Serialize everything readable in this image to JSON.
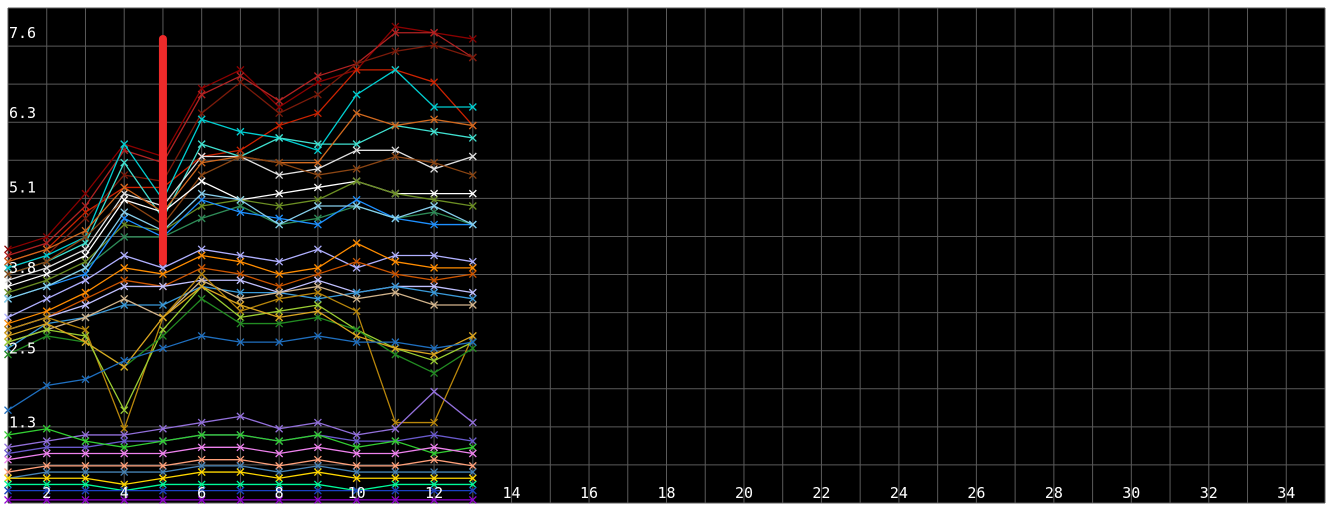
{
  "chart_data": {
    "type": "line",
    "title": "",
    "xlabel": "",
    "ylabel": "",
    "grid": true,
    "background_color": "#000000",
    "grid_color": "#5a5a5a",
    "text_color": "#ffffff",
    "marker": "x",
    "xlim": [
      1,
      35
    ],
    "ylim": [
      0,
      8.0
    ],
    "x_ticks": [
      2,
      4,
      6,
      8,
      10,
      12,
      14,
      16,
      18,
      20,
      22,
      24,
      26,
      28,
      30,
      32,
      34
    ],
    "y_ticks": [
      1.3,
      2.5,
      3.8,
      5.1,
      6.3,
      7.6
    ],
    "x": [
      1,
      2,
      3,
      4,
      5,
      6,
      7,
      8,
      9,
      10,
      11,
      12,
      13
    ],
    "series": [
      {
        "color": "#8b0000",
        "values": [
          4.1,
          4.3,
          5.0,
          5.8,
          5.6,
          6.7,
          7.0,
          6.4,
          6.8,
          7.0,
          7.7,
          7.6,
          7.5
        ]
      },
      {
        "color": "#b22222",
        "values": [
          4.0,
          4.2,
          4.8,
          5.7,
          5.5,
          6.6,
          6.9,
          6.5,
          6.9,
          7.1,
          7.6,
          7.6,
          7.2
        ]
      },
      {
        "color": "#cc2200",
        "values": [
          3.9,
          4.1,
          4.7,
          5.1,
          5.1,
          5.6,
          5.7,
          6.1,
          6.3,
          7.0,
          7.0,
          6.8,
          6.1
        ]
      },
      {
        "color": "#7a1a0a",
        "values": [
          3.8,
          4.0,
          4.6,
          5.3,
          5.2,
          6.3,
          6.8,
          6.3,
          6.6,
          7.1,
          7.3,
          7.4,
          7.2
        ]
      },
      {
        "color": "#00ced1",
        "values": [
          3.8,
          4.0,
          4.3,
          5.8,
          4.9,
          6.2,
          6.0,
          5.9,
          5.7,
          6.6,
          7.0,
          6.4,
          6.4
        ]
      },
      {
        "color": "#40e0d0",
        "values": [
          3.7,
          3.9,
          4.2,
          5.5,
          4.6,
          5.8,
          5.6,
          5.9,
          5.8,
          5.8,
          6.1,
          6.0,
          5.9
        ]
      },
      {
        "color": "#e0e0e0",
        "values": [
          3.6,
          3.8,
          4.1,
          5.0,
          4.8,
          5.6,
          5.6,
          5.3,
          5.4,
          5.7,
          5.7,
          5.4,
          5.6
        ]
      },
      {
        "color": "#d2691e",
        "values": [
          3.9,
          4.1,
          4.4,
          5.1,
          4.7,
          5.5,
          5.6,
          5.5,
          5.5,
          6.3,
          6.1,
          6.2,
          6.1
        ]
      },
      {
        "color": "#8b4513",
        "values": [
          3.7,
          3.9,
          4.3,
          4.9,
          4.5,
          5.3,
          5.6,
          5.5,
          5.3,
          5.4,
          5.6,
          5.5,
          5.3
        ]
      },
      {
        "color": "#ffffff",
        "values": [
          3.5,
          3.7,
          4.0,
          4.9,
          4.7,
          5.2,
          4.9,
          5.0,
          5.1,
          5.2,
          5.0,
          5.0,
          5.0
        ]
      },
      {
        "color": "#6b8e23",
        "values": [
          3.4,
          3.6,
          3.9,
          4.5,
          4.4,
          4.8,
          4.9,
          4.8,
          4.9,
          5.2,
          5.0,
          4.9,
          4.8
        ]
      },
      {
        "color": "#2e8b57",
        "values": [
          3.3,
          3.5,
          3.8,
          4.3,
          4.3,
          4.6,
          4.8,
          4.5,
          4.6,
          4.8,
          4.6,
          4.7,
          4.5
        ]
      },
      {
        "color": "#1e90ff",
        "values": [
          3.3,
          3.5,
          3.7,
          4.6,
          4.3,
          4.9,
          4.7,
          4.6,
          4.5,
          4.9,
          4.6,
          4.5,
          4.5
        ]
      },
      {
        "color": "#87ceeb",
        "values": [
          3.3,
          3.5,
          3.8,
          4.7,
          4.4,
          5.0,
          4.9,
          4.5,
          4.8,
          4.8,
          4.6,
          4.8,
          4.5
        ]
      },
      {
        "color": "#b0b0ff",
        "values": [
          3.0,
          3.3,
          3.6,
          4.0,
          3.8,
          4.1,
          4.0,
          3.9,
          4.1,
          3.8,
          4.0,
          4.0,
          3.9
        ]
      },
      {
        "color": "#ff8c00",
        "values": [
          2.9,
          3.1,
          3.4,
          3.8,
          3.7,
          4.0,
          3.9,
          3.7,
          3.8,
          4.2,
          3.9,
          3.8,
          3.8
        ]
      },
      {
        "color": "#cc5500",
        "values": [
          2.8,
          3.0,
          3.3,
          3.6,
          3.5,
          3.8,
          3.7,
          3.5,
          3.7,
          3.9,
          3.7,
          3.6,
          3.7
        ]
      },
      {
        "color": "#c0c0ff",
        "values": [
          2.8,
          3.0,
          3.2,
          3.5,
          3.5,
          3.6,
          3.6,
          3.4,
          3.6,
          3.4,
          3.5,
          3.5,
          3.4
        ]
      },
      {
        "color": "#3a9ad9",
        "values": [
          2.5,
          2.9,
          3.0,
          3.2,
          3.2,
          3.5,
          3.4,
          3.4,
          3.3,
          3.4,
          3.5,
          3.4,
          3.3
        ]
      },
      {
        "color": "#d2b48c",
        "values": [
          2.6,
          2.8,
          3.0,
          3.3,
          3.0,
          3.6,
          3.3,
          3.4,
          3.5,
          3.3,
          3.4,
          3.2,
          3.2
        ]
      },
      {
        "color": "#b8860b",
        "values": [
          2.8,
          3.0,
          2.8,
          1.2,
          3.0,
          3.7,
          3.1,
          3.3,
          3.4,
          3.1,
          1.3,
          1.3,
          2.7
        ]
      },
      {
        "color": "#9acd32",
        "values": [
          2.6,
          2.8,
          2.7,
          1.5,
          2.8,
          3.5,
          3.0,
          3.1,
          3.2,
          2.8,
          2.5,
          2.3,
          2.6
        ]
      },
      {
        "color": "#228b22",
        "values": [
          2.4,
          2.7,
          2.6,
          2.2,
          2.7,
          3.3,
          2.9,
          2.9,
          3.0,
          2.8,
          2.4,
          2.1,
          2.5
        ]
      },
      {
        "color": "#daa520",
        "values": [
          2.7,
          2.9,
          2.6,
          2.2,
          3.0,
          3.5,
          3.2,
          3.0,
          3.1,
          2.7,
          2.5,
          2.4,
          2.7
        ]
      },
      {
        "color": "#1f6fbf",
        "values": [
          1.5,
          1.9,
          2.0,
          2.3,
          2.5,
          2.7,
          2.6,
          2.6,
          2.7,
          2.6,
          2.6,
          2.5,
          2.6
        ]
      },
      {
        "color": "#9370db",
        "values": [
          0.9,
          1.0,
          1.1,
          1.1,
          1.2,
          1.3,
          1.4,
          1.2,
          1.3,
          1.1,
          1.2,
          1.8,
          1.3
        ]
      },
      {
        "color": "#6a5acd",
        "values": [
          0.8,
          0.9,
          0.9,
          1.0,
          1.0,
          1.1,
          1.1,
          1.0,
          1.1,
          1.0,
          1.0,
          1.1,
          1.0
        ]
      },
      {
        "color": "#32cd32",
        "values": [
          1.1,
          1.2,
          1.0,
          0.9,
          1.0,
          1.1,
          1.1,
          1.0,
          1.1,
          0.9,
          1.0,
          0.8,
          0.9
        ]
      },
      {
        "color": "#ee82ee",
        "values": [
          0.7,
          0.8,
          0.8,
          0.8,
          0.8,
          0.9,
          0.9,
          0.8,
          0.9,
          0.8,
          0.8,
          0.9,
          0.8
        ]
      },
      {
        "color": "#ffa07a",
        "values": [
          0.5,
          0.6,
          0.6,
          0.6,
          0.6,
          0.7,
          0.7,
          0.6,
          0.7,
          0.6,
          0.6,
          0.7,
          0.6
        ]
      },
      {
        "color": "#4682b4",
        "values": [
          0.4,
          0.5,
          0.5,
          0.5,
          0.5,
          0.6,
          0.6,
          0.5,
          0.6,
          0.5,
          0.5,
          0.5,
          0.5
        ]
      },
      {
        "color": "#ffd700",
        "values": [
          0.4,
          0.4,
          0.4,
          0.3,
          0.4,
          0.5,
          0.5,
          0.4,
          0.5,
          0.4,
          0.4,
          0.4,
          0.4
        ]
      },
      {
        "color": "#00fa9a",
        "values": [
          0.3,
          0.3,
          0.3,
          0.2,
          0.3,
          0.3,
          0.3,
          0.3,
          0.3,
          0.2,
          0.3,
          0.3,
          0.3
        ]
      },
      {
        "color": "#1a3fbf",
        "values": [
          0.2,
          0.2,
          0.2,
          0.2,
          0.2,
          0.2,
          0.2,
          0.2,
          0.2,
          0.2,
          0.2,
          0.2,
          0.2
        ]
      },
      {
        "color": "#9400d3",
        "values": [
          0.05,
          0.05,
          0.05,
          0.05,
          0.05,
          0.05,
          0.05,
          0.05,
          0.05,
          0.05,
          0.05,
          0.05,
          0.05
        ]
      }
    ],
    "annotation": {
      "type": "vertical-bar",
      "color": "#ee2a2a",
      "x": 5,
      "y_from": 3.9,
      "y_to": 7.5
    }
  }
}
